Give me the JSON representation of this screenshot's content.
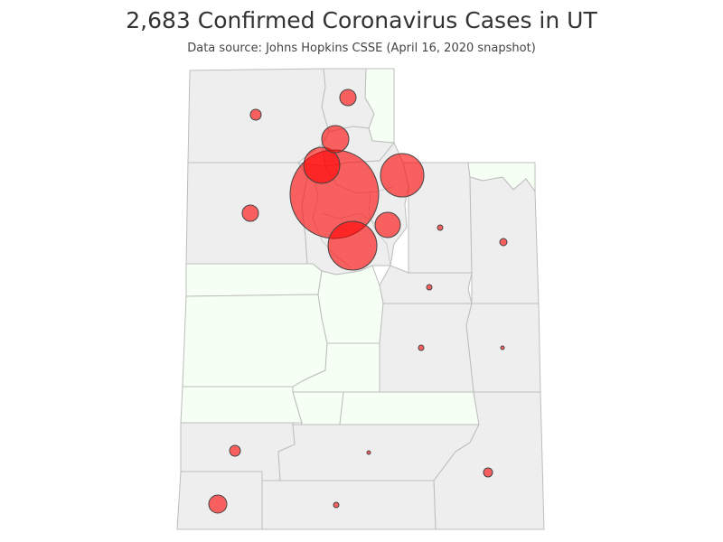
{
  "title": "2,683 Confirmed Coronavirus Cases in UT",
  "subtitle": "Data source: Johns Hopkins CSSE (April 16, 2020 snapshot)",
  "colors": {
    "bubble": "#ff0000",
    "county_fill": "#eeeeee",
    "county_no_cases_fill": "#f6fff4",
    "county_border": "#bdbdbd"
  }
}
